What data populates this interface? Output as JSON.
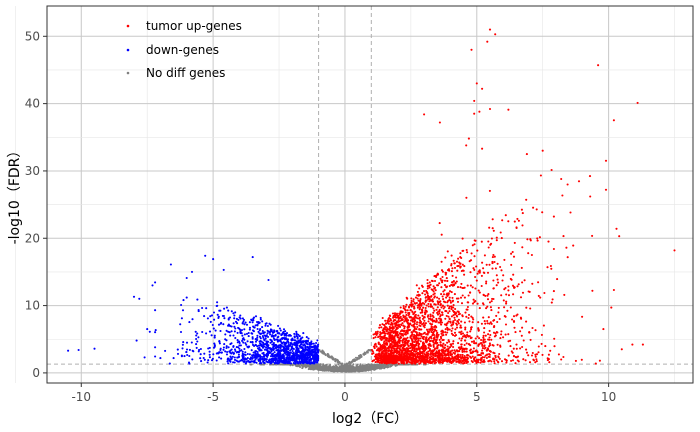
{
  "chart_data": {
    "type": "scatter",
    "title": "",
    "xlabel": "log2（FC）",
    "ylabel": "-log10（FDR）",
    "xlim": [
      -11.3,
      13.2
    ],
    "ylim": [
      -1.5,
      54.5
    ],
    "x_ticks": [
      -10,
      -5,
      0,
      5,
      10
    ],
    "y_ticks": [
      0,
      10,
      20,
      30,
      40,
      50
    ],
    "grid": true,
    "thresholds": {
      "log2fc": [
        -1,
        1
      ],
      "neg_log10_fdr": 1.3
    },
    "legend_position": "top-left",
    "series": [
      {
        "name": "tumor up-genes",
        "color": "#ff0000",
        "summary": "dense cloud of several thousand genes with log2FC > 1, mostly -log10(FDR) 1.3–20, thinning upward",
        "notable_points": [
          [
            5.5,
            51.0
          ],
          [
            5.7,
            50.3
          ],
          [
            5.4,
            49.2
          ],
          [
            4.8,
            48.0
          ],
          [
            9.6,
            45.7
          ],
          [
            5.0,
            43.0
          ],
          [
            5.2,
            42.2
          ],
          [
            11.1,
            40.1
          ],
          [
            4.9,
            40.4
          ],
          [
            5.5,
            39.2
          ],
          [
            6.2,
            39.1
          ],
          [
            5.1,
            38.8
          ],
          [
            3.0,
            38.4
          ],
          [
            4.9,
            38.5
          ],
          [
            3.6,
            37.2
          ],
          [
            4.7,
            34.8
          ],
          [
            4.6,
            33.8
          ],
          [
            5.2,
            33.3
          ],
          [
            7.5,
            33.0
          ],
          [
            6.9,
            32.5
          ],
          [
            9.9,
            31.5
          ],
          [
            8.2,
            28.8
          ],
          [
            9.9,
            27.2
          ],
          [
            9.3,
            26.2
          ],
          [
            10.3,
            21.4
          ],
          [
            12.5,
            18.2
          ],
          [
            8.4,
            18.6
          ],
          [
            10.4,
            20.3
          ],
          [
            10.1,
            9.7
          ],
          [
            10.9,
            4.2
          ],
          [
            11.3,
            4.2
          ],
          [
            9.8,
            6.5
          ],
          [
            10.5,
            3.5
          ]
        ]
      },
      {
        "name": "down-genes",
        "color": "#0000ff",
        "summary": "cloud of genes with log2FC < -1, mostly -log10(FDR) 1.3–10, peaking near 17",
        "notable_points": [
          [
            -5.3,
            17.4
          ],
          [
            -3.5,
            17.2
          ],
          [
            -5.0,
            16.9
          ],
          [
            -6.6,
            16.1
          ],
          [
            -4.6,
            15.3
          ],
          [
            -5.8,
            15.0
          ],
          [
            -6.0,
            14.1
          ],
          [
            -2.9,
            13.8
          ],
          [
            -7.3,
            13.0
          ],
          [
            -8.0,
            11.3
          ],
          [
            -7.8,
            11.0
          ],
          [
            -7.5,
            6.5
          ],
          [
            -7.4,
            6.1
          ],
          [
            -7.9,
            4.8
          ],
          [
            -7.2,
            3.8
          ],
          [
            -10.1,
            3.4
          ],
          [
            -9.5,
            3.6
          ],
          [
            -10.5,
            3.3
          ],
          [
            -7.6,
            2.3
          ],
          [
            -7.0,
            2.2
          ],
          [
            -6.5,
            2.2
          ]
        ]
      },
      {
        "name": "No diff genes",
        "color": "#808080",
        "summary": "non-significant genes hugging the bottom: |log2FC| < 1 or -log10(FDR) < 1.3"
      }
    ]
  }
}
